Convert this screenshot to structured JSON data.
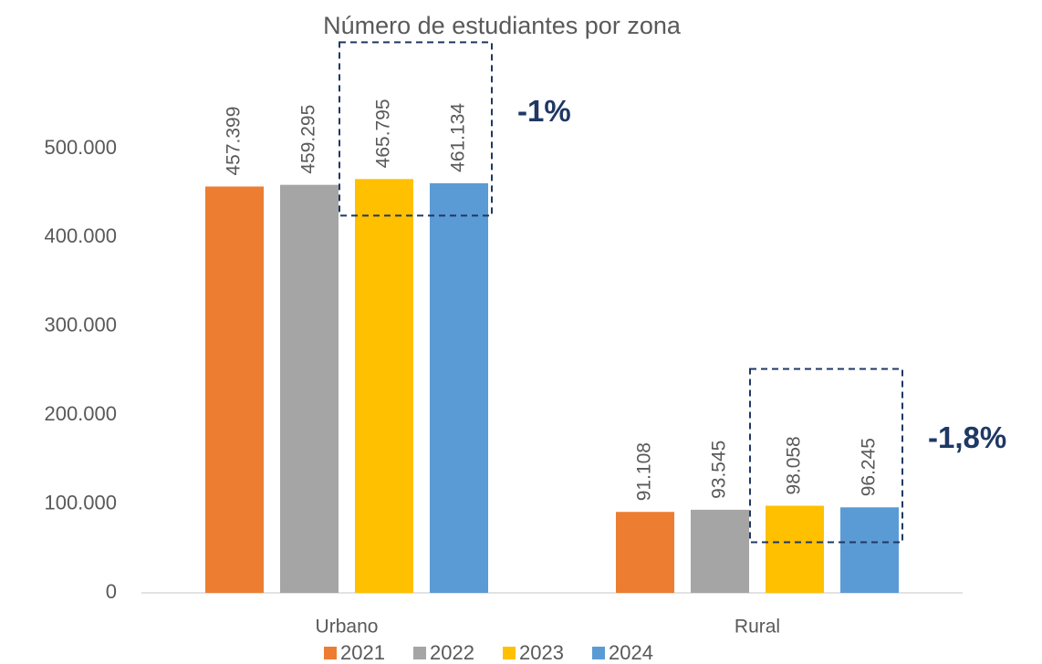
{
  "chart_data": {
    "type": "bar",
    "title": "Número de estudiantes por zona",
    "categories": [
      "Urbano",
      "Rural"
    ],
    "series": [
      {
        "name": "2021",
        "color": "#ed7d31",
        "values": [
          457399,
          91108
        ],
        "value_labels": [
          "457.399",
          "91.108"
        ]
      },
      {
        "name": "2022",
        "color": "#a5a5a5",
        "values": [
          459295,
          93545
        ],
        "value_labels": [
          "459.295",
          "93.545"
        ]
      },
      {
        "name": "2023",
        "color": "#ffc000",
        "values": [
          465795,
          98058
        ],
        "value_labels": [
          "465.795",
          "98.058"
        ]
      },
      {
        "name": "2024",
        "color": "#5b9bd5",
        "values": [
          461134,
          96245
        ],
        "value_labels": [
          "461.134",
          "96.245"
        ]
      }
    ],
    "ylim": [
      0,
      500000
    ],
    "yticks": [
      0,
      {
        "value": 100000,
        "label": "100.000"
      },
      {
        "value": 200000,
        "label": "200.000"
      },
      {
        "value": 300000,
        "label": "300.000"
      },
      {
        "value": 400000,
        "label": "400.000"
      },
      {
        "value": 500000,
        "label": "500.000"
      }
    ],
    "grid": false,
    "legend": "bottom",
    "annotations": [
      "-1%",
      "-1,8%"
    ]
  }
}
